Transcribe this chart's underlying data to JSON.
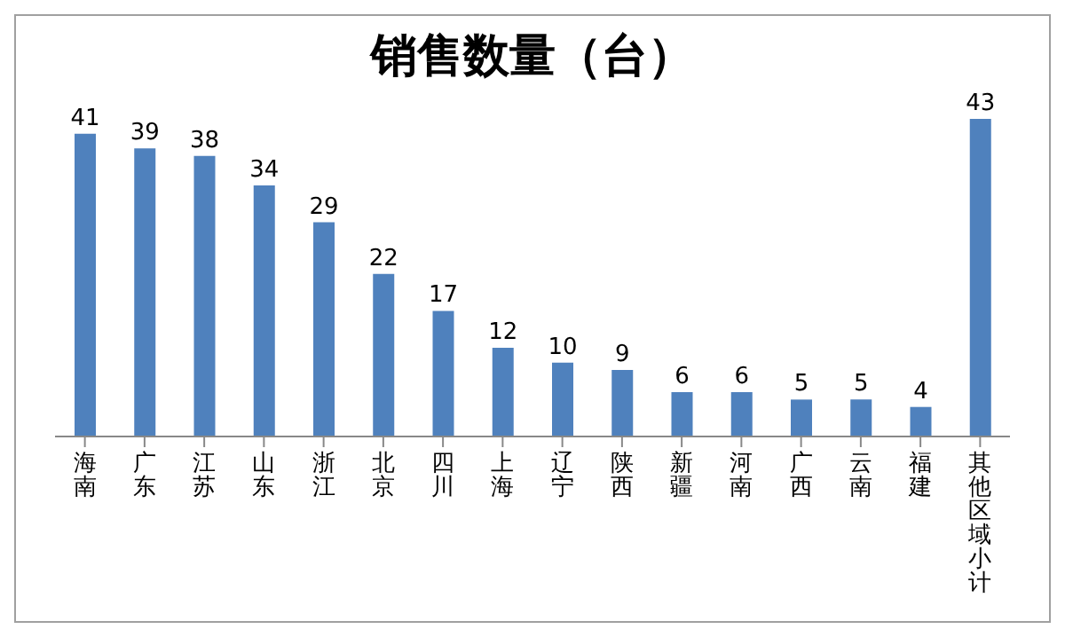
{
  "chart_data": {
    "type": "bar",
    "title": "销售数量（台）",
    "categories": [
      "海南",
      "广东",
      "江苏",
      "山东",
      "浙江",
      "北京",
      "四川",
      "上海",
      "辽宁",
      "陕西",
      "新疆",
      "河南",
      "广西",
      "云南",
      "福建",
      "其他区域小计"
    ],
    "values": [
      41,
      39,
      38,
      34,
      29,
      22,
      17,
      12,
      10,
      9,
      6,
      6,
      5,
      5,
      4,
      43
    ],
    "color": "#4f81bd",
    "data_labels": true,
    "grid": false,
    "legend": false
  }
}
